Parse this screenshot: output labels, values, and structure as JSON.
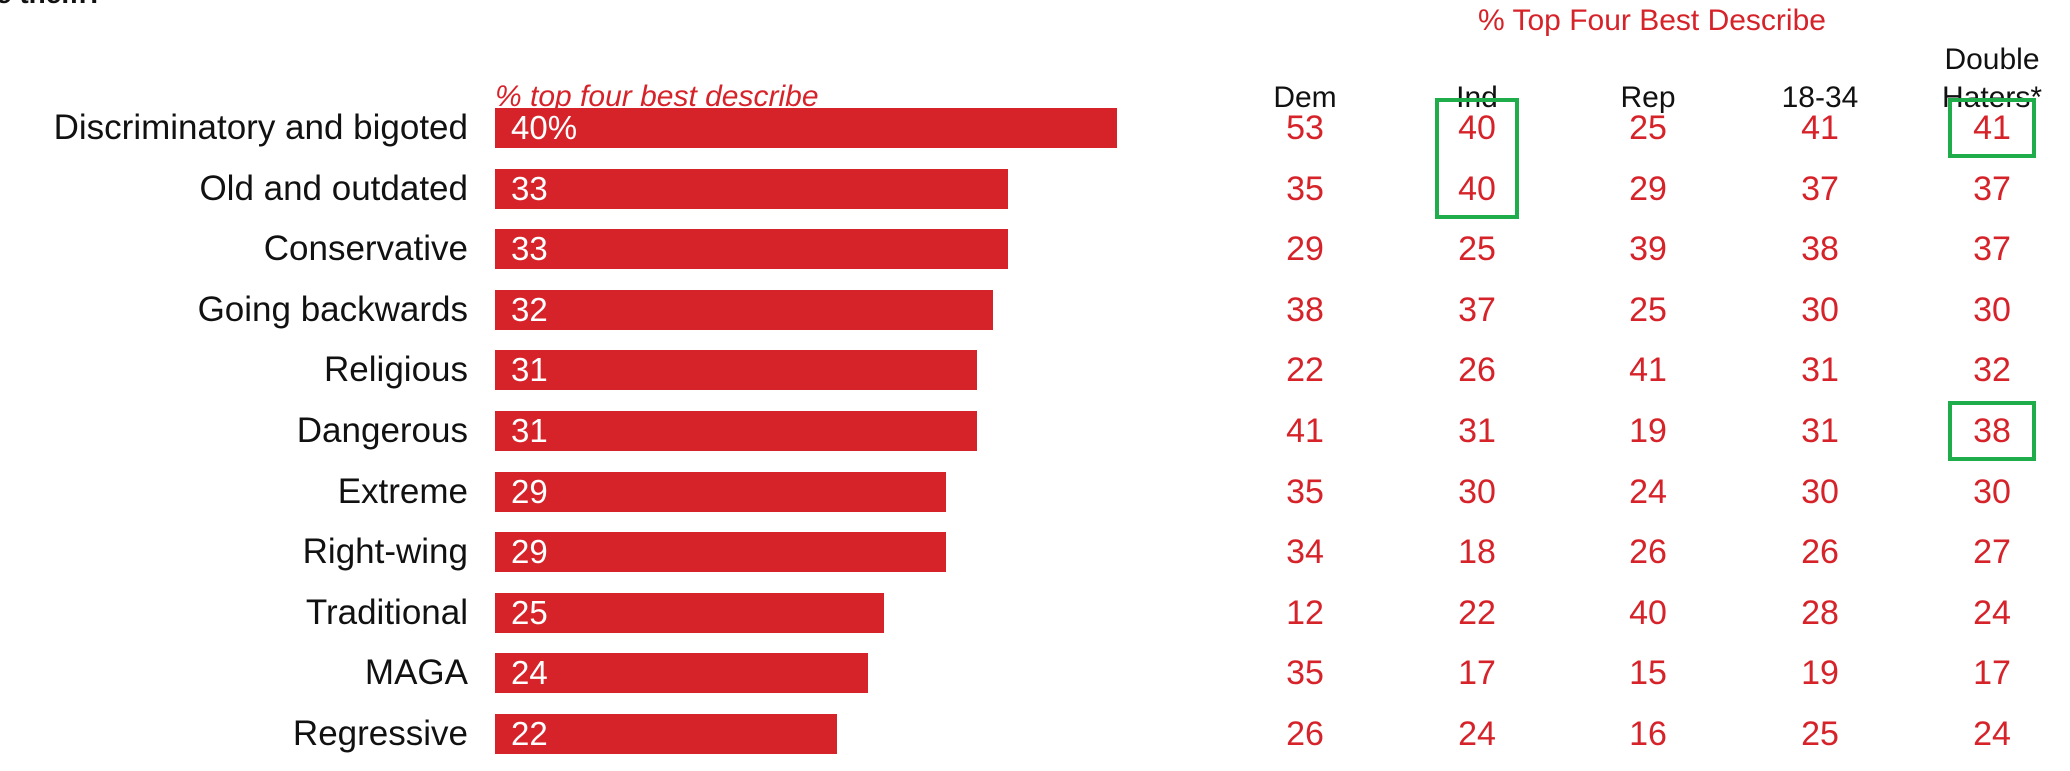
{
  "question_fragment": "e them?",
  "chart_data": {
    "type": "bar",
    "orientation": "horizontal",
    "subtitle": "% top four best describe",
    "categories": [
      "Discriminatory and bigoted",
      "Old and outdated",
      "Conservative",
      "Going backwards",
      "Religious",
      "Dangerous",
      "Extreme",
      "Right-wing",
      "Traditional",
      "MAGA",
      "Regressive"
    ],
    "values": [
      40,
      33,
      33,
      32,
      31,
      31,
      29,
      29,
      25,
      24,
      22
    ],
    "value_labels": [
      "40%",
      "33",
      "33",
      "32",
      "31",
      "31",
      "29",
      "29",
      "25",
      "24",
      "22"
    ],
    "bar_color": "#d6232a",
    "xlim": [
      0,
      40
    ]
  },
  "table": {
    "title": "% Top Four Best Describe",
    "columns": [
      {
        "lines": [
          "Dem"
        ]
      },
      {
        "lines": [
          "Ind"
        ]
      },
      {
        "lines": [
          "Rep"
        ]
      },
      {
        "lines": [
          "18-34"
        ]
      },
      {
        "lines": [
          "Double",
          "Haters*"
        ]
      }
    ],
    "rows": [
      [
        "53",
        "40",
        "25",
        "41",
        "41"
      ],
      [
        "35",
        "40",
        "29",
        "37",
        "37"
      ],
      [
        "29",
        "25",
        "39",
        "38",
        "37"
      ],
      [
        "38",
        "37",
        "25",
        "30",
        "30"
      ],
      [
        "22",
        "26",
        "41",
        "31",
        "32"
      ],
      [
        "41",
        "31",
        "19",
        "31",
        "38"
      ],
      [
        "35",
        "30",
        "24",
        "30",
        "30"
      ],
      [
        "34",
        "18",
        "26",
        "26",
        "27"
      ],
      [
        "12",
        "22",
        "40",
        "28",
        "24"
      ],
      [
        "35",
        "17",
        "15",
        "19",
        "17"
      ],
      [
        "26",
        "24",
        "16",
        "25",
        "24"
      ]
    ],
    "highlight_color": "#1fad4b",
    "highlights": [
      {
        "col": 1,
        "row_start": 0,
        "row_end": 1
      },
      {
        "col": 4,
        "row_start": 0,
        "row_end": 0
      },
      {
        "col": 4,
        "row_start": 5,
        "row_end": 5
      }
    ]
  }
}
